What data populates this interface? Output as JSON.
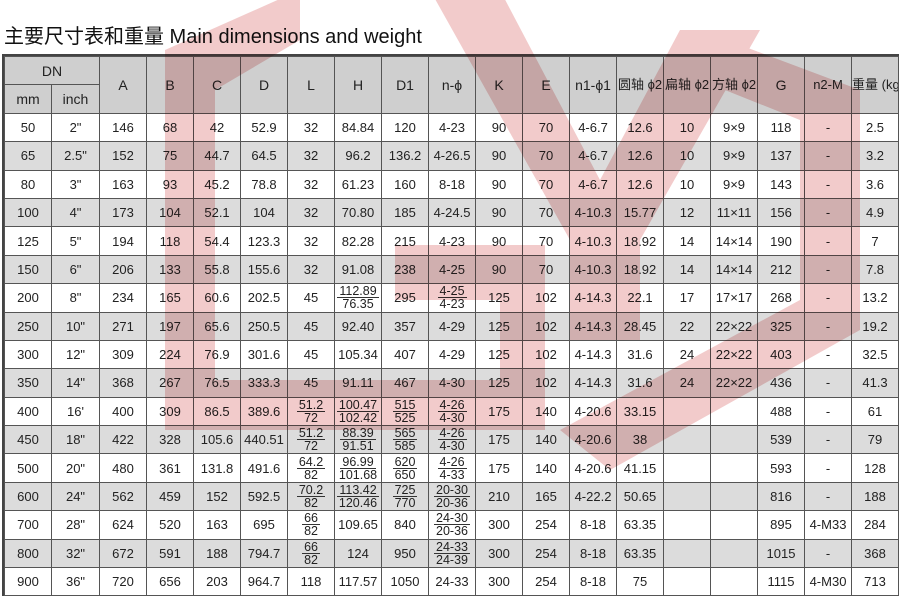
{
  "title": "主要尺寸表和重量 Main dimensions and weight",
  "header": {
    "dn": "DN",
    "mm": "mm",
    "inch": "inch",
    "cols": [
      "A",
      "B",
      "C",
      "D",
      "L",
      "H",
      "D1",
      "n-ϕ",
      "K",
      "E",
      "n1-ϕ1",
      "圆轴 ϕ2",
      "扁轴 ϕ2",
      "方轴 ϕ2",
      "G",
      "n2-M",
      "重量 (kg) Weight"
    ]
  },
  "rows": [
    [
      "50",
      "2\"",
      "146",
      "68",
      "42",
      "52.9",
      "32",
      "84.84",
      "120",
      "4-23",
      "90",
      "70",
      "4-6.7",
      "12.6",
      "10",
      "9×9",
      "118",
      "-",
      "2.5"
    ],
    [
      "65",
      "2.5\"",
      "152",
      "75",
      "44.7",
      "64.5",
      "32",
      "96.2",
      "136.2",
      "4-26.5",
      "90",
      "70",
      "4-6.7",
      "12.6",
      "10",
      "9×9",
      "137",
      "-",
      "3.2"
    ],
    [
      "80",
      "3\"",
      "163",
      "93",
      "45.2",
      "78.8",
      "32",
      "61.23",
      "160",
      "8-18",
      "90",
      "70",
      "4-6.7",
      "12.6",
      "10",
      "9×9",
      "143",
      "-",
      "3.6"
    ],
    [
      "100",
      "4\"",
      "173",
      "104",
      "52.1",
      "104",
      "32",
      "70.80",
      "185",
      "4-24.5",
      "90",
      "70",
      "4-10.3",
      "15.77",
      "12",
      "11×11",
      "156",
      "-",
      "4.9"
    ],
    [
      "125",
      "5\"",
      "194",
      "118",
      "54.4",
      "123.3",
      "32",
      "82.28",
      "215",
      "4-23",
      "90",
      "70",
      "4-10.3",
      "18.92",
      "14",
      "14×14",
      "190",
      "-",
      "7"
    ],
    [
      "150",
      "6\"",
      "206",
      "133",
      "55.8",
      "155.6",
      "32",
      "91.08",
      "238",
      "4-25",
      "90",
      "70",
      "4-10.3",
      "18.92",
      "14",
      "14×14",
      "212",
      "-",
      "7.8"
    ],
    [
      "200",
      "8\"",
      "234",
      "165",
      "60.6",
      "202.5",
      "45",
      [
        "112.89",
        "76.35"
      ],
      "295",
      [
        "4-25",
        "4-23"
      ],
      "125",
      "102",
      "4-14.3",
      "22.1",
      "17",
      "17×17",
      "268",
      "-",
      "13.2"
    ],
    [
      "250",
      "10\"",
      "271",
      "197",
      "65.6",
      "250.5",
      "45",
      "92.40",
      "357",
      "4-29",
      "125",
      "102",
      "4-14.3",
      "28.45",
      "22",
      "22×22",
      "325",
      "-",
      "19.2"
    ],
    [
      "300",
      "12\"",
      "309",
      "224",
      "76.9",
      "301.6",
      "45",
      "105.34",
      "407",
      "4-29",
      "125",
      "102",
      "4-14.3",
      "31.6",
      "24",
      "22×22",
      "403",
      "-",
      "32.5"
    ],
    [
      "350",
      "14\"",
      "368",
      "267",
      "76.5",
      "333.3",
      "45",
      "91.11",
      "467",
      "4-30",
      "125",
      "102",
      "4-14.3",
      "31.6",
      "24",
      "22×22",
      "436",
      "-",
      "41.3"
    ],
    [
      "400",
      "16'",
      "400",
      "309",
      "86.5",
      "389.6",
      [
        "51.2",
        "72"
      ],
      [
        "100.47",
        "102.42"
      ],
      [
        "515",
        "525"
      ],
      [
        "4-26",
        "4-30"
      ],
      "175",
      "140",
      "4-20.6",
      "33.15",
      "",
      "",
      "488",
      "-",
      "61"
    ],
    [
      "450",
      "18\"",
      "422",
      "328",
      "105.6",
      "440.51",
      [
        "51.2",
        "72"
      ],
      [
        "88.39",
        "91.51"
      ],
      [
        "565",
        "585"
      ],
      [
        "4-26",
        "4-30"
      ],
      "175",
      "140",
      "4-20.6",
      "38",
      "",
      "",
      "539",
      "-",
      "79"
    ],
    [
      "500",
      "20\"",
      "480",
      "361",
      "131.8",
      "491.6",
      [
        "64.2",
        "82"
      ],
      [
        "96.99",
        "101.68"
      ],
      [
        "620",
        "650"
      ],
      [
        "4-26",
        "4-33"
      ],
      "175",
      "140",
      "4-20.6",
      "41.15",
      "",
      "",
      "593",
      "-",
      "128"
    ],
    [
      "600",
      "24\"",
      "562",
      "459",
      "152",
      "592.5",
      [
        "70.2",
        "82"
      ],
      [
        "113.42",
        "120.46"
      ],
      [
        "725",
        "770"
      ],
      [
        "20-30",
        "20-36"
      ],
      "210",
      "165",
      "4-22.2",
      "50.65",
      "",
      "",
      "816",
      "-",
      "188"
    ],
    [
      "700",
      "28\"",
      "624",
      "520",
      "163",
      "695",
      [
        "66",
        "82"
      ],
      "109.65",
      "840",
      [
        "24-30",
        "20-36"
      ],
      "300",
      "254",
      "8-18",
      "63.35",
      "",
      "",
      "895",
      "4-M33",
      "284"
    ],
    [
      "800",
      "32\"",
      "672",
      "591",
      "188",
      "794.7",
      [
        "66",
        "82"
      ],
      "124",
      "950",
      [
        "24-33",
        "24-39"
      ],
      "300",
      "254",
      "8-18",
      "63.35",
      "",
      "",
      "1015",
      "-",
      "368"
    ],
    [
      "900",
      "36\"",
      "720",
      "656",
      "203",
      "964.7",
      "118",
      "117.57",
      "1050",
      "24-33",
      "300",
      "254",
      "8-18",
      "75",
      "",
      "",
      "1115",
      "4-M30",
      "713"
    ]
  ],
  "watermark": {
    "logo": "GY",
    "color": "#e8a0a0"
  },
  "colors": {
    "header_bg": "#cfcfcf",
    "alt_row_bg": "#dcdcdc"
  }
}
